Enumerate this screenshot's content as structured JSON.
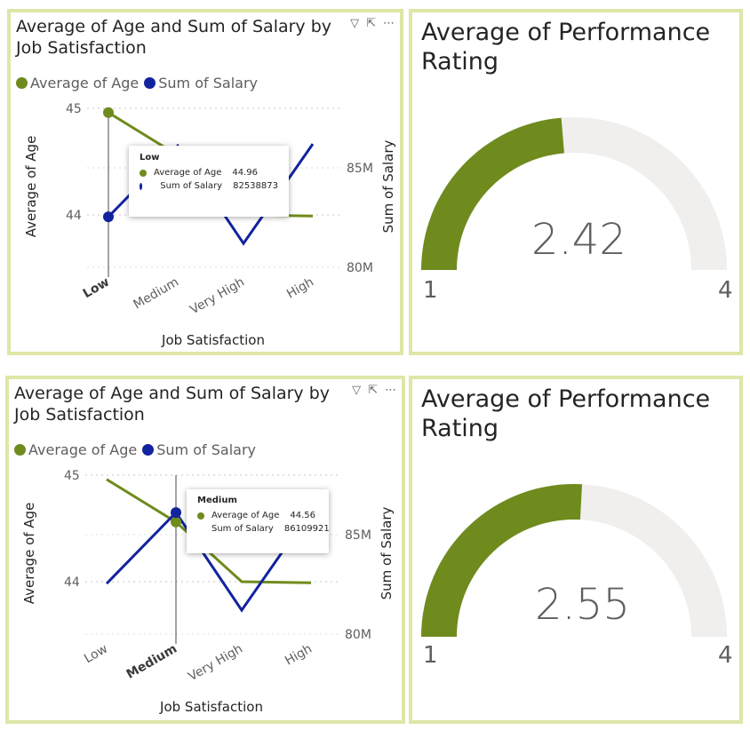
{
  "colors": {
    "age": "#6f8b1d",
    "salary": "#12239e",
    "gauge_fill": "#6f8b1d",
    "gauge_bg": "#f1efee",
    "border": "#dfe6a6"
  },
  "icons": [
    "filter-icon",
    "focus-mode-icon",
    "more-options-icon"
  ],
  "chart_data": [
    {
      "type": "line",
      "title": "Average of Age and Sum of Salary by Job Satisfaction",
      "xlabel": "Job Satisfaction",
      "ylabel": "Average of Age",
      "y2label": "Sum of Salary",
      "categories": [
        "Low",
        "Medium",
        "Very High",
        "High"
      ],
      "highlighted": "Low",
      "series": [
        {
          "name": "Average of Age",
          "axis": "left",
          "values": [
            44.96,
            44.56,
            44.0,
            43.99
          ]
        },
        {
          "name": "Sum of Salary",
          "axis": "right",
          "values": [
            82538873,
            86109921,
            81200000,
            86200000
          ]
        }
      ],
      "y_ticks": [
        "45",
        "44"
      ],
      "y2_ticks": [
        "85M",
        "80M"
      ],
      "tooltip": {
        "title": "Low",
        "rows": [
          {
            "label": "Average of Age",
            "value": "44.96"
          },
          {
            "label": "Sum of Salary",
            "value": "82538873"
          }
        ]
      }
    },
    {
      "type": "gauge",
      "title": "Average of Performance Rating",
      "value": 2.42,
      "value_label": "2.42",
      "min": 1,
      "max": 4,
      "min_label": "1",
      "max_label": "4"
    },
    {
      "type": "line",
      "title": "Average of Age and Sum of Salary by Job Satisfaction",
      "xlabel": "Job Satisfaction",
      "ylabel": "Average of Age",
      "y2label": "Sum of Salary",
      "categories": [
        "Low",
        "Medium",
        "Very High",
        "High"
      ],
      "highlighted": "Medium",
      "series": [
        {
          "name": "Average of Age",
          "axis": "left",
          "values": [
            44.96,
            44.56,
            44.0,
            43.99
          ]
        },
        {
          "name": "Sum of Salary",
          "axis": "right",
          "values": [
            82538873,
            86109921,
            81200000,
            86200000
          ]
        }
      ],
      "y_ticks": [
        "45",
        "44"
      ],
      "y2_ticks": [
        "85M",
        "80M"
      ],
      "tooltip": {
        "title": "Medium",
        "rows": [
          {
            "label": "Average of Age",
            "value": "44.56"
          },
          {
            "label": "Sum of Salary",
            "value": "86109921"
          }
        ]
      }
    },
    {
      "type": "gauge",
      "title": "Average of Performance Rating",
      "value": 2.55,
      "value_label": "2.55",
      "min": 1,
      "max": 4,
      "min_label": "1",
      "max_label": "4"
    }
  ]
}
